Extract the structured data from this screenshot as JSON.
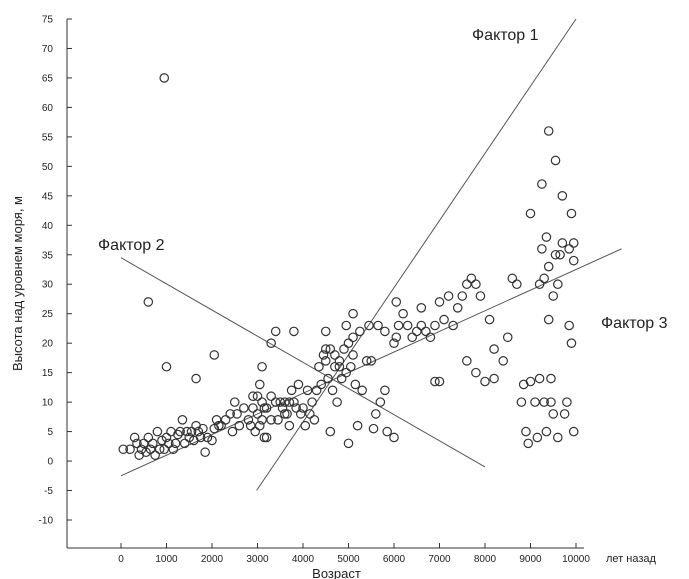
{
  "chart_data": {
    "type": "scatter",
    "xlabel": "Возраст",
    "x_unit": "лет назад",
    "ylabel": "Высота над уровнем моря, м",
    "xlim": [
      0,
      10000
    ],
    "ylim": [
      -10,
      75
    ],
    "x_ticks": [
      0,
      1000,
      2000,
      3000,
      4000,
      5000,
      6000,
      7000,
      8000,
      9000,
      10000
    ],
    "y_ticks": [
      -10,
      -5,
      0,
      5,
      10,
      15,
      20,
      25,
      30,
      35,
      40,
      45,
      50,
      55,
      60,
      65,
      70,
      75
    ],
    "grid": false,
    "marker": "open-circle",
    "points": [
      [
        50,
        2
      ],
      [
        200,
        2
      ],
      [
        300,
        4
      ],
      [
        350,
        3
      ],
      [
        400,
        1
      ],
      [
        450,
        2
      ],
      [
        500,
        3
      ],
      [
        550,
        1.5
      ],
      [
        600,
        4
      ],
      [
        650,
        2
      ],
      [
        700,
        3
      ],
      [
        750,
        1
      ],
      [
        800,
        5
      ],
      [
        850,
        2
      ],
      [
        900,
        3.5
      ],
      [
        950,
        2
      ],
      [
        1000,
        4
      ],
      [
        1050,
        3
      ],
      [
        1100,
        5
      ],
      [
        1150,
        2
      ],
      [
        1200,
        3
      ],
      [
        1250,
        4.5
      ],
      [
        1300,
        5
      ],
      [
        1350,
        7
      ],
      [
        1400,
        3
      ],
      [
        1450,
        5
      ],
      [
        1500,
        4
      ],
      [
        1550,
        5
      ],
      [
        1600,
        3.5
      ],
      [
        1650,
        6
      ],
      [
        1700,
        5
      ],
      [
        1750,
        4
      ],
      [
        1800,
        5.5
      ],
      [
        1850,
        1.5
      ],
      [
        1900,
        4
      ],
      [
        2000,
        3.5
      ],
      [
        2050,
        5.5
      ],
      [
        2100,
        7
      ],
      [
        2150,
        6
      ],
      [
        2200,
        6
      ],
      [
        2300,
        7
      ],
      [
        2400,
        8
      ],
      [
        2450,
        5
      ],
      [
        2500,
        10
      ],
      [
        2550,
        8
      ],
      [
        2600,
        6
      ],
      [
        2700,
        9
      ],
      [
        2800,
        7
      ],
      [
        2850,
        6
      ],
      [
        2900,
        9
      ],
      [
        2950,
        5
      ],
      [
        3000,
        11
      ],
      [
        3000,
        8
      ],
      [
        3050,
        6
      ],
      [
        3100,
        10
      ],
      [
        3100,
        7
      ],
      [
        3150,
        4
      ],
      [
        3200,
        9
      ],
      [
        3200,
        4
      ],
      [
        3300,
        11
      ],
      [
        3300,
        7
      ],
      [
        3400,
        10
      ],
      [
        3450,
        7
      ],
      [
        3500,
        10
      ],
      [
        3550,
        9
      ],
      [
        3600,
        8
      ],
      [
        3600,
        10
      ],
      [
        3650,
        8
      ],
      [
        3700,
        6
      ],
      [
        3700,
        10
      ],
      [
        3750,
        12
      ],
      [
        3800,
        10
      ],
      [
        3850,
        9
      ],
      [
        3900,
        13
      ],
      [
        3950,
        8
      ],
      [
        4000,
        9
      ],
      [
        4050,
        6
      ],
      [
        4100,
        12
      ],
      [
        4150,
        8
      ],
      [
        4200,
        10
      ],
      [
        4250,
        7
      ],
      [
        4300,
        12
      ],
      [
        4350,
        16
      ],
      [
        4400,
        13
      ],
      [
        4450,
        18
      ],
      [
        4500,
        17
      ],
      [
        4550,
        14
      ],
      [
        4600,
        19
      ],
      [
        4650,
        12
      ],
      [
        4700,
        18
      ],
      [
        4750,
        10
      ],
      [
        4800,
        16
      ],
      [
        4850,
        14
      ],
      [
        4900,
        19
      ],
      [
        4950,
        15
      ],
      [
        5000,
        20
      ],
      [
        5050,
        16
      ],
      [
        5100,
        21
      ],
      [
        5150,
        13
      ],
      [
        5300,
        12
      ],
      [
        5400,
        17
      ],
      [
        5500,
        17
      ],
      [
        5550,
        5.5
      ],
      [
        5600,
        8
      ],
      [
        5700,
        10
      ],
      [
        5800,
        12
      ],
      [
        5850,
        5
      ],
      [
        6000,
        4
      ],
      [
        6000,
        20
      ],
      [
        6050,
        21
      ],
      [
        6100,
        23
      ],
      [
        6200,
        25
      ],
      [
        6300,
        23
      ],
      [
        6400,
        21
      ],
      [
        6500,
        22
      ],
      [
        6600,
        26
      ],
      [
        6700,
        22
      ],
      [
        6800,
        21
      ],
      [
        6900,
        23
      ],
      [
        7000,
        27
      ],
      [
        7100,
        24
      ],
      [
        7200,
        28
      ],
      [
        7300,
        23
      ],
      [
        7400,
        26
      ],
      [
        7500,
        28
      ],
      [
        7600,
        30
      ],
      [
        7700,
        31
      ],
      [
        7800,
        30
      ],
      [
        7900,
        28
      ],
      [
        8100,
        24
      ],
      [
        8200,
        14
      ],
      [
        8200,
        19
      ],
      [
        8400,
        17
      ],
      [
        8500,
        21
      ],
      [
        8600,
        31
      ],
      [
        8700,
        30
      ],
      [
        8800,
        10
      ],
      [
        8850,
        13
      ],
      [
        8900,
        5
      ],
      [
        8950,
        3
      ],
      [
        9000,
        13.5
      ],
      [
        9000,
        42
      ],
      [
        9100,
        10
      ],
      [
        9150,
        4
      ],
      [
        9200,
        14
      ],
      [
        9200,
        30
      ],
      [
        9250,
        36
      ],
      [
        9250,
        47
      ],
      [
        9300,
        10
      ],
      [
        9300,
        31
      ],
      [
        9350,
        5
      ],
      [
        9350,
        38
      ],
      [
        9400,
        24
      ],
      [
        9400,
        33
      ],
      [
        9400,
        56
      ],
      [
        9450,
        14
      ],
      [
        9450,
        10
      ],
      [
        9500,
        8
      ],
      [
        9500,
        28
      ],
      [
        9550,
        35
      ],
      [
        9550,
        51
      ],
      [
        9600,
        30
      ],
      [
        9600,
        4
      ],
      [
        9650,
        35
      ],
      [
        9700,
        37
      ],
      [
        9700,
        45
      ],
      [
        9750,
        8
      ],
      [
        9800,
        10
      ],
      [
        9850,
        23
      ],
      [
        9850,
        36
      ],
      [
        9900,
        42
      ],
      [
        9900,
        20
      ],
      [
        9950,
        34
      ],
      [
        9950,
        5
      ],
      [
        950,
        65
      ],
      [
        600,
        27
      ],
      [
        1000,
        16
      ],
      [
        1650,
        14
      ],
      [
        2050,
        18
      ],
      [
        3300,
        20
      ],
      [
        3400,
        22
      ],
      [
        3800,
        22
      ],
      [
        3100,
        16
      ],
      [
        3050,
        13
      ],
      [
        3150,
        9
      ],
      [
        2900,
        11
      ],
      [
        4500,
        22
      ],
      [
        4500,
        19
      ],
      [
        4700,
        16
      ],
      [
        4950,
        23
      ],
      [
        5100,
        25
      ],
      [
        5100,
        18
      ],
      [
        5200,
        6
      ],
      [
        5000,
        3
      ],
      [
        4600,
        5
      ],
      [
        4800,
        17
      ],
      [
        5250,
        22
      ],
      [
        5450,
        23
      ],
      [
        5650,
        23
      ],
      [
        5800,
        22
      ],
      [
        6050,
        27
      ],
      [
        6600,
        23
      ],
      [
        6900,
        13.5
      ],
      [
        7000,
        13.5
      ],
      [
        7600,
        17
      ],
      [
        7800,
        15
      ],
      [
        8000,
        13.5
      ],
      [
        9950,
        37
      ]
    ],
    "lines": [
      {
        "name": "Фактор 1",
        "from": [
          2980,
          -5
        ],
        "to": [
          10000,
          75
        ]
      },
      {
        "name": "Фактор 2",
        "from": [
          0,
          34.5
        ],
        "to": [
          8000,
          -1
        ]
      },
      {
        "name": "Фактор 3",
        "from": [
          0,
          -2.5
        ],
        "to": [
          11000,
          36
        ]
      }
    ]
  }
}
